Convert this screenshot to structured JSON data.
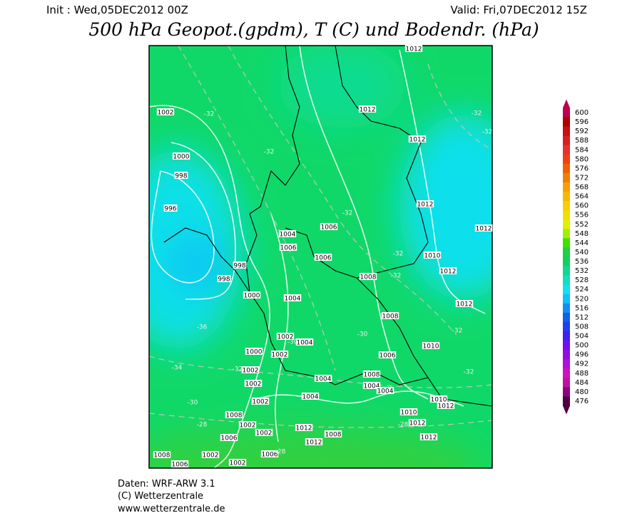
{
  "header": {
    "init": "Init : Wed,05DEC2012 00Z",
    "valid": "Valid: Fri,07DEC2012 15Z",
    "title": "500 hPa Geopot.(gpdm), T (C) und Bodendr. (hPa)"
  },
  "colorbar": {
    "values": [
      600,
      596,
      592,
      588,
      584,
      580,
      576,
      572,
      568,
      564,
      560,
      556,
      552,
      548,
      544,
      540,
      536,
      532,
      528,
      524,
      520,
      516,
      512,
      508,
      504,
      500,
      496,
      492,
      488,
      484,
      480,
      476
    ],
    "colors": [
      "#c0004a",
      "#b00000",
      "#c81010",
      "#d82020",
      "#e83030",
      "#f04010",
      "#f06000",
      "#f08000",
      "#f8a000",
      "#f8b800",
      "#f8d000",
      "#f0e000",
      "#e0f000",
      "#a0f000",
      "#40e000",
      "#20d040",
      "#10d060",
      "#10d890",
      "#10e0c0",
      "#10e0f0",
      "#10c0f8",
      "#1090f0",
      "#1060e8",
      "#2040f0",
      "#4020f0",
      "#7010f0",
      "#9010e0",
      "#b010d8",
      "#d010c0",
      "#c010a0",
      "#900080",
      "#500040"
    ]
  },
  "map": {
    "contour_labels": [
      "1012",
      "1012",
      "1002",
      "-32",
      "-32",
      "-32",
      "1012",
      "1000",
      "-32",
      "998",
      "1012",
      "996",
      "-32",
      "1012",
      "1004",
      "1006",
      "1006",
      "1006",
      "-32",
      "1010",
      "998",
      "1012",
      "998",
      "1008",
      "-32",
      "1000",
      "1004",
      "1012",
      "1008",
      "-36",
      "-32",
      "-30",
      "1002",
      "-30",
      "1004",
      "1010",
      "1000",
      "1002",
      "1006",
      "-34",
      "-32",
      "1002",
      "-32",
      "1002",
      "1004",
      "1008",
      "1004",
      "1004",
      "1002",
      "1004",
      "1010",
      "-30",
      "1008",
      "1010",
      "1012",
      "-28",
      "1002",
      "1002",
      "1012",
      "-28",
      "1012",
      "1008",
      "1012",
      "1006",
      "1012",
      "1008",
      "1006",
      "-28",
      "1006",
      "1002",
      "1002"
    ]
  },
  "footer": {
    "lines": [
      "Daten: WRF-ARW 3.1",
      "(C) Wetterzentrale",
      "www.wetterzentrale.de"
    ]
  }
}
